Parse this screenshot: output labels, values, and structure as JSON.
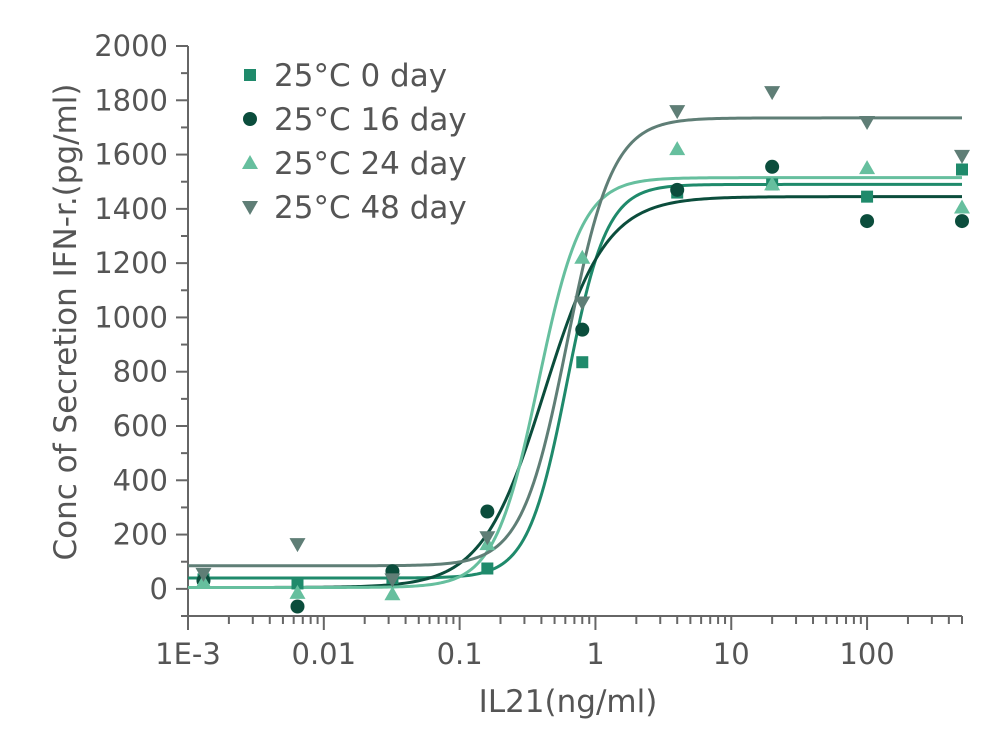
{
  "chart_data": {
    "type": "scatter",
    "title": "",
    "xlabel": "IL21(ng/ml)",
    "ylabel": "Conc of Secretion IFN-r.(pg/ml)",
    "xscale": "log",
    "xlim": [
      0.001,
      500
    ],
    "ylim": [
      -100,
      2000
    ],
    "x_ticks": [
      {
        "value": 0.001,
        "label": "1E-3"
      },
      {
        "value": 0.01,
        "label": "0.01"
      },
      {
        "value": 0.1,
        "label": "0.1"
      },
      {
        "value": 1,
        "label": "1"
      },
      {
        "value": 10,
        "label": "10"
      },
      {
        "value": 100,
        "label": "100"
      }
    ],
    "y_ticks": [
      {
        "value": 0,
        "label": "0"
      },
      {
        "value": 200,
        "label": "200"
      },
      {
        "value": 400,
        "label": "400"
      },
      {
        "value": 600,
        "label": "600"
      },
      {
        "value": 800,
        "label": "800"
      },
      {
        "value": 1000,
        "label": "1000"
      },
      {
        "value": 1200,
        "label": "1200"
      },
      {
        "value": 1400,
        "label": "1400"
      },
      {
        "value": 1600,
        "label": "1600"
      },
      {
        "value": 1800,
        "label": "1800"
      },
      {
        "value": 2000,
        "label": "2000"
      }
    ],
    "legend_position": "top-left",
    "series": [
      {
        "name": "25°C 0 day",
        "marker": "square",
        "color": "#1f8a6b",
        "x": [
          0.0013,
          0.0064,
          0.032,
          0.16,
          0.8,
          4,
          20,
          100,
          500
        ],
        "y": [
          35,
          20,
          40,
          75,
          835,
          1460,
          1490,
          1445,
          1545
        ],
        "fit": {
          "bottom": 40,
          "top": 1490,
          "ec50": 0.62,
          "hill": 3.0
        }
      },
      {
        "name": "25°C 16 day",
        "marker": "circle",
        "color": "#0b4d3c",
        "x": [
          0.0013,
          0.0064,
          0.032,
          0.16,
          0.8,
          4,
          20,
          100,
          500
        ],
        "y": [
          30,
          -65,
          65,
          285,
          955,
          1470,
          1555,
          1355,
          1355
        ],
        "fit": {
          "bottom": 5,
          "top": 1445,
          "ec50": 0.42,
          "hill": 1.9
        }
      },
      {
        "name": "25°C 24 day",
        "marker": "triangle-up",
        "color": "#66bf9e",
        "x": [
          0.0013,
          0.0064,
          0.032,
          0.16,
          0.8,
          4,
          20,
          100,
          500
        ],
        "y": [
          25,
          -15,
          -20,
          165,
          1220,
          1620,
          1490,
          1550,
          1405
        ],
        "fit": {
          "bottom": 5,
          "top": 1515,
          "ec50": 0.38,
          "hill": 2.7
        }
      },
      {
        "name": "25°C 48 day",
        "marker": "triangle-down",
        "color": "#5f7e76",
        "x": [
          0.0013,
          0.0064,
          0.032,
          0.16,
          0.8,
          4,
          20,
          100,
          500
        ],
        "y": [
          55,
          165,
          35,
          190,
          1055,
          1760,
          1830,
          1720,
          1595
        ],
        "fit": {
          "bottom": 85,
          "top": 1735,
          "ec50": 0.62,
          "hill": 2.6
        }
      }
    ]
  }
}
